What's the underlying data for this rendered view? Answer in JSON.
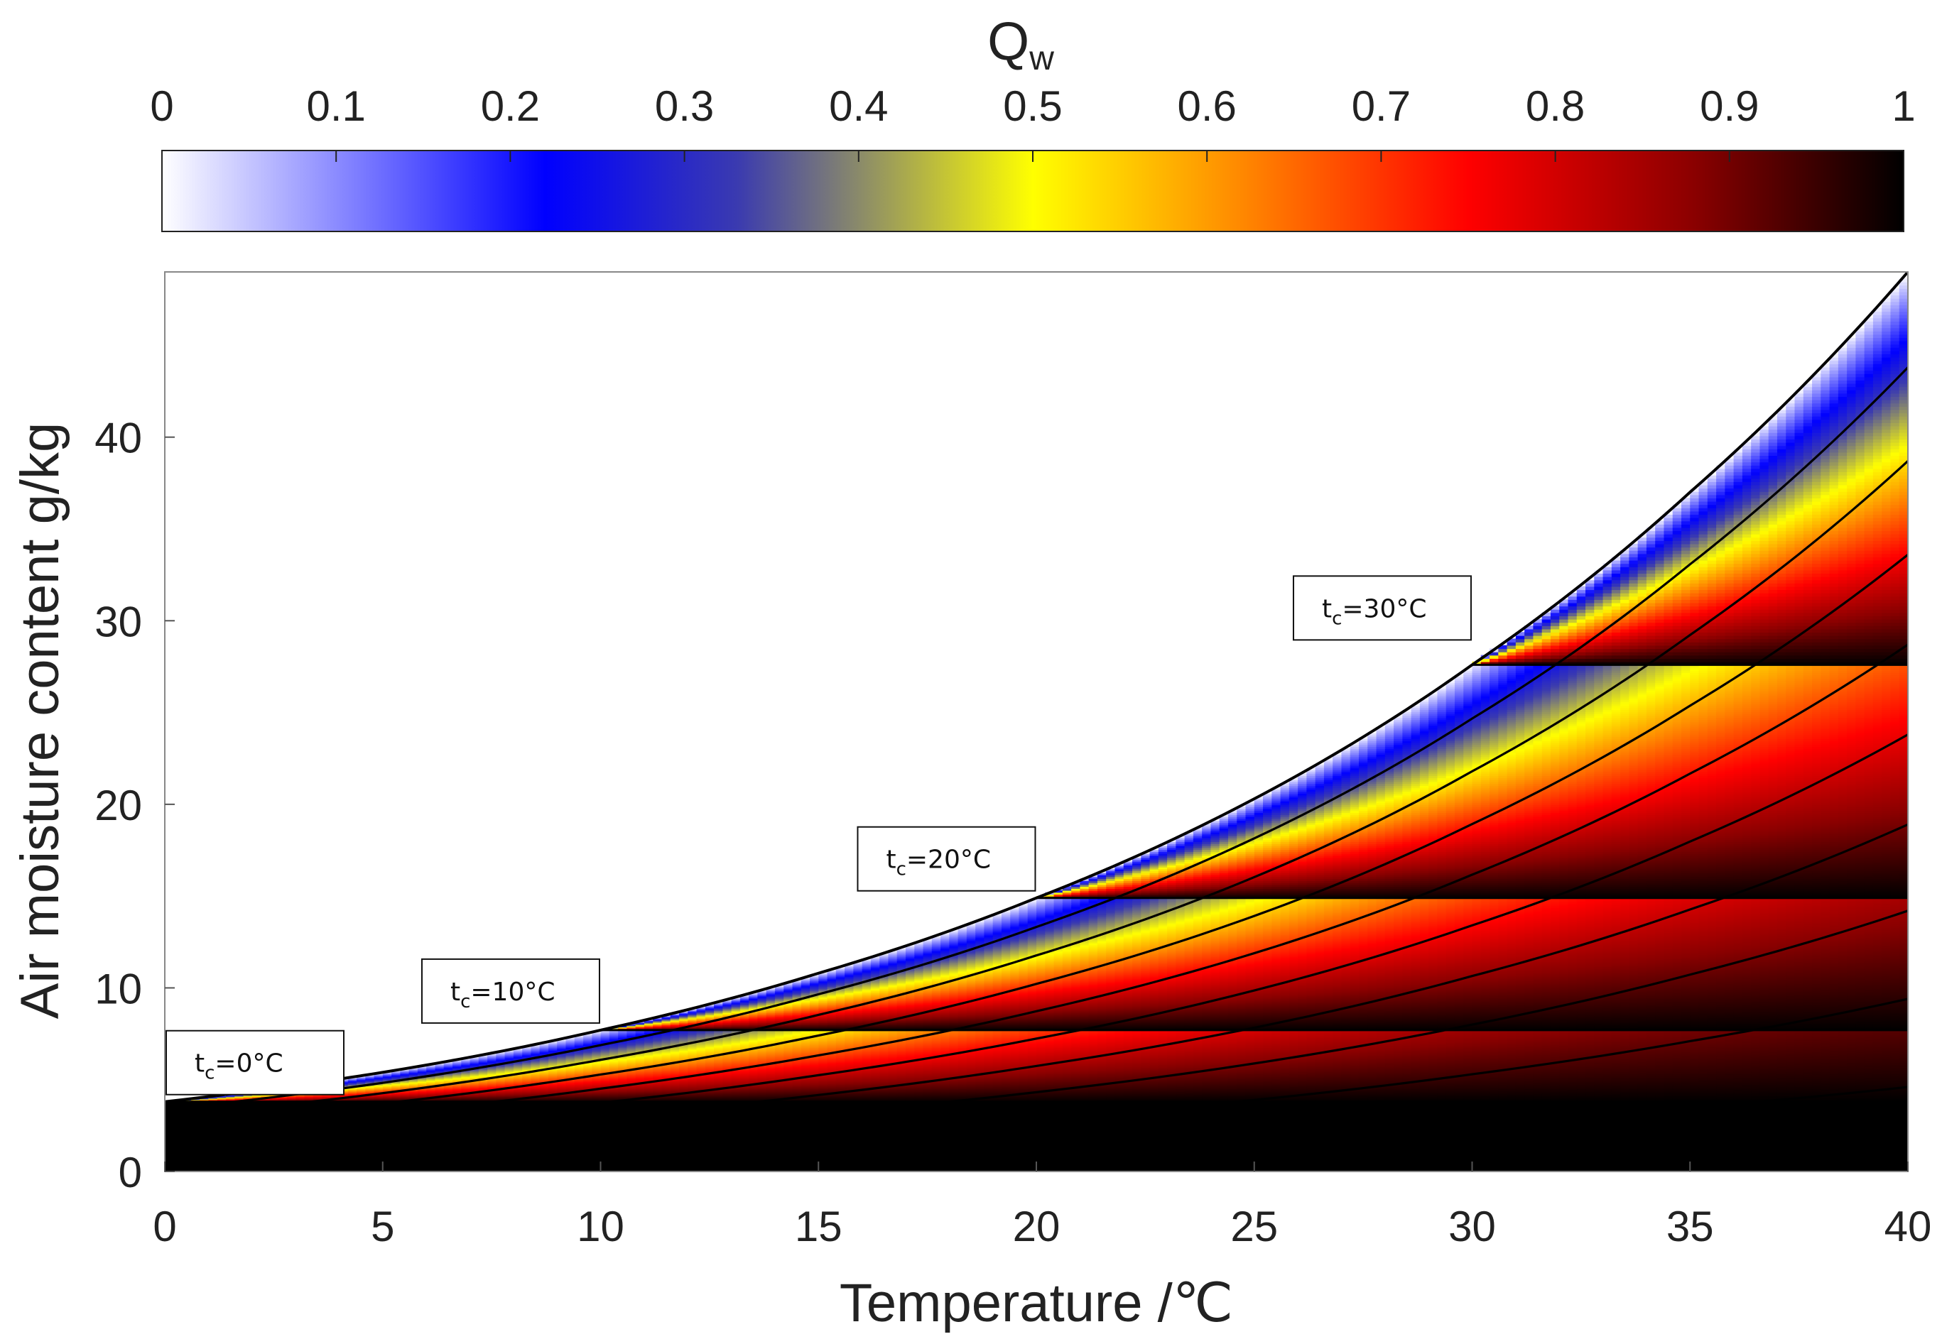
{
  "chart_data": {
    "type": "heatmap",
    "title": "",
    "xlabel": "Temperature /℃",
    "ylabel": "Air moisture content g/kg",
    "xlim": [
      0,
      40
    ],
    "ylim": [
      0,
      49
    ],
    "xticks": [
      "0",
      "5",
      "10",
      "15",
      "20",
      "25",
      "30",
      "35",
      "40"
    ],
    "xtick_values": [
      0,
      5,
      10,
      15,
      20,
      25,
      30,
      35,
      40
    ],
    "yticks": [
      "0",
      "10",
      "20",
      "30",
      "40"
    ],
    "ytick_values": [
      0,
      10,
      20,
      30,
      40
    ],
    "colorbar": {
      "label_main": "Q",
      "label_sub": "w",
      "range": [
        0,
        1
      ],
      "ticks": [
        "0",
        "0.1",
        "0.2",
        "0.3",
        "0.4",
        "0.5",
        "0.6",
        "0.7",
        "0.8",
        "0.9",
        "1"
      ],
      "tick_values": [
        0,
        0.1,
        0.2,
        0.3,
        0.4,
        0.5,
        0.6,
        0.7,
        0.8,
        0.9,
        1
      ],
      "colormap_stops": [
        {
          "v": 0.0,
          "color": "#ffffff"
        },
        {
          "v": 0.22,
          "color": "#0000ff"
        },
        {
          "v": 0.33,
          "color": "#3a3ab0"
        },
        {
          "v": 0.4,
          "color": "#8a8a6a"
        },
        {
          "v": 0.5,
          "color": "#ffff00"
        },
        {
          "v": 0.62,
          "color": "#ff8800"
        },
        {
          "v": 0.75,
          "color": "#ff0000"
        },
        {
          "v": 0.88,
          "color": "#8a0000"
        },
        {
          "v": 1.0,
          "color": "#000000"
        }
      ]
    },
    "saturation_curve": {
      "description": "moisture content at saturation vs temperature",
      "points": [
        {
          "t": 0,
          "d": 3.8
        },
        {
          "t": 5,
          "d": 5.4
        },
        {
          "t": 10,
          "d": 7.7
        },
        {
          "t": 15,
          "d": 10.8
        },
        {
          "t": 20,
          "d": 14.9
        },
        {
          "t": 25,
          "d": 20.3
        },
        {
          "t": 30,
          "d": 27.6
        },
        {
          "t": 35,
          "d": 37.0
        },
        {
          "t": 40,
          "d": 49.0
        }
      ]
    },
    "condensation_levels": [
      {
        "tc": 0,
        "d": 3.8,
        "label": "=0°C"
      },
      {
        "tc": 10,
        "d": 7.7,
        "label": "=10°C"
      },
      {
        "tc": 20,
        "d": 14.9,
        "label": "=20°C"
      },
      {
        "tc": 30,
        "d": 27.6,
        "label": "=30°C"
      }
    ],
    "annotation_prefix": "t",
    "annotation_subscript": "c",
    "iso_curve_endpoints_at_40": [
      49.0,
      43.8,
      38.7,
      33.6,
      28.7,
      23.8,
      18.9,
      14.2,
      9.4,
      4.6
    ],
    "background_below_lowest_level": "#000000"
  },
  "colors": {
    "plot_background": "#ffffff",
    "axis_line": "#777777",
    "curve": "#000000",
    "text": "#222222"
  }
}
